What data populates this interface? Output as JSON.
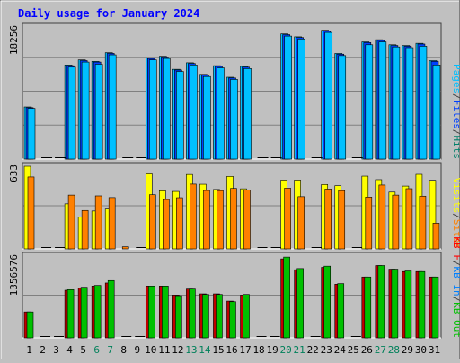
{
  "title": "Daily usage for January 2024",
  "colors": {
    "background": "#c0c0c0",
    "title": "#0000ff",
    "pages": "#00c0ff",
    "files": "#0040ff",
    "hits": "#00806a",
    "visits": "#ffff00",
    "sites": "#ff8000",
    "kb_in": "#0080ff",
    "kb_out": "#00c000",
    "kb_f": "#ff0000",
    "weekend_day": "#00805a"
  },
  "chart_data": [
    {
      "type": "bar",
      "panel": "hits-files-pages",
      "title": "Daily usage for January 2024",
      "ylabel": "18256",
      "ymax": 18256,
      "legend": [
        {
          "label": "Pages",
          "color": "#00c0ff"
        },
        {
          "label": "/",
          "color": "#404040"
        },
        {
          "label": "Files",
          "color": "#0040ff"
        },
        {
          "label": "/",
          "color": "#404040"
        },
        {
          "label": "Hits",
          "color": "#00806a"
        }
      ],
      "categories": [
        "1",
        "2",
        "3",
        "4",
        "5",
        "6",
        "7",
        "8",
        "9",
        "10",
        "11",
        "12",
        "13",
        "14",
        "15",
        "16",
        "17",
        "18",
        "19",
        "20",
        "21",
        "22",
        "23",
        "24",
        "25",
        "26",
        "27",
        "28",
        "29",
        "30",
        "31"
      ],
      "series": [
        {
          "name": "Hits",
          "values": [
            7200,
            0,
            0,
            13000,
            13700,
            13500,
            14700,
            0,
            0,
            14000,
            14200,
            12400,
            13300,
            11700,
            12900,
            11300,
            12800,
            0,
            0,
            17300,
            16900,
            0,
            17800,
            14600,
            0,
            16200,
            16500,
            15800,
            15700,
            16000,
            13600
          ]
        },
        {
          "name": "Files",
          "values": [
            7100,
            0,
            0,
            12900,
            13600,
            13400,
            14600,
            0,
            0,
            13900,
            14100,
            12300,
            13200,
            11600,
            12800,
            11200,
            12700,
            0,
            0,
            17200,
            16800,
            0,
            17700,
            14500,
            0,
            16100,
            16400,
            15700,
            15600,
            15900,
            13500
          ]
        },
        {
          "name": "Pages",
          "values": [
            7000,
            0,
            0,
            12700,
            13400,
            13100,
            14400,
            0,
            0,
            13700,
            13900,
            12100,
            13000,
            11400,
            12600,
            11000,
            12500,
            0,
            0,
            17000,
            16600,
            0,
            17500,
            14300,
            0,
            15800,
            16200,
            15500,
            15400,
            15600,
            13000
          ]
        }
      ]
    },
    {
      "type": "bar",
      "panel": "visits-sites",
      "ylabel": "633",
      "ymax": 633,
      "legend": [
        {
          "label": "Visits",
          "color": "#ffff00"
        },
        {
          "label": "/",
          "color": "#404040"
        },
        {
          "label": "Sites",
          "color": "#ff8000"
        }
      ],
      "categories": [
        "1",
        "2",
        "3",
        "4",
        "5",
        "6",
        "7",
        "8",
        "9",
        "10",
        "11",
        "12",
        "13",
        "14",
        "15",
        "16",
        "17",
        "18",
        "19",
        "20",
        "21",
        "22",
        "23",
        "24",
        "25",
        "26",
        "27",
        "28",
        "29",
        "30",
        "31"
      ],
      "series": [
        {
          "name": "Visits",
          "values": [
            633,
            0,
            0,
            345,
            243,
            290,
            305,
            0,
            0,
            575,
            445,
            440,
            570,
            495,
            455,
            555,
            460,
            0,
            0,
            527,
            527,
            0,
            493,
            484,
            0,
            557,
            530,
            435,
            481,
            571,
            525
          ]
        },
        {
          "name": "Sites",
          "values": [
            551,
            0,
            0,
            412,
            294,
            406,
            393,
            16,
            0,
            415,
            378,
            392,
            496,
            447,
            446,
            463,
            450,
            0,
            0,
            465,
            400,
            0,
            458,
            446,
            0,
            397,
            489,
            412,
            461,
            404,
            197
          ]
        }
      ]
    },
    {
      "type": "bar",
      "panel": "kbf-kbin-kbout",
      "ylabel": "1356576",
      "ymax": 1356576,
      "legend": [
        {
          "label": "KB F",
          "color": "#ff0000"
        },
        {
          "label": "/",
          "color": "#404040"
        },
        {
          "label": "KB In",
          "color": "#0080ff"
        },
        {
          "label": "/",
          "color": "#404040"
        },
        {
          "label": "KB Out",
          "color": "#00c000"
        }
      ],
      "categories": [
        "1",
        "2",
        "3",
        "4",
        "5",
        "6",
        "7",
        "8",
        "9",
        "10",
        "11",
        "12",
        "13",
        "14",
        "15",
        "16",
        "17",
        "18",
        "19",
        "20",
        "21",
        "22",
        "23",
        "24",
        "25",
        "26",
        "27",
        "28",
        "29",
        "30",
        "31"
      ],
      "series": [
        {
          "name": "KB F",
          "values": [
            430000,
            0,
            0,
            790000,
            830000,
            860000,
            910000,
            0,
            0,
            860000,
            860000,
            710000,
            810000,
            730000,
            730000,
            610000,
            710000,
            0,
            0,
            1310000,
            1130000,
            0,
            1170000,
            890000,
            0,
            1010000,
            1200000,
            1140000,
            1100000,
            1100000,
            1010000
          ]
        },
        {
          "name": "KB In",
          "values": [
            0,
            0,
            0,
            0,
            0,
            0,
            0,
            0,
            0,
            0,
            0,
            0,
            0,
            0,
            0,
            0,
            0,
            0,
            0,
            0,
            0,
            0,
            0,
            0,
            0,
            0,
            0,
            0,
            0,
            0,
            0
          ]
        },
        {
          "name": "KB Out",
          "values": [
            430000,
            0,
            0,
            800000,
            840000,
            870000,
            950000,
            0,
            0,
            860000,
            860000,
            700000,
            810000,
            720000,
            720000,
            600000,
            720000,
            0,
            0,
            1340000,
            1150000,
            0,
            1190000,
            900000,
            0,
            1010000,
            1200000,
            1140000,
            1110000,
            1100000,
            1010000
          ]
        }
      ]
    }
  ],
  "day_labels": [
    {
      "text": "1",
      "weekend": false
    },
    {
      "text": "2",
      "weekend": false
    },
    {
      "text": "3",
      "weekend": false
    },
    {
      "text": "4",
      "weekend": false
    },
    {
      "text": "5",
      "weekend": false
    },
    {
      "text": "6",
      "weekend": true
    },
    {
      "text": "7",
      "weekend": true
    },
    {
      "text": "8",
      "weekend": false
    },
    {
      "text": "9",
      "weekend": false
    },
    {
      "text": "10",
      "weekend": false
    },
    {
      "text": "11",
      "weekend": false
    },
    {
      "text": "12",
      "weekend": false
    },
    {
      "text": "13",
      "weekend": true
    },
    {
      "text": "14",
      "weekend": true
    },
    {
      "text": "15",
      "weekend": false
    },
    {
      "text": "16",
      "weekend": false
    },
    {
      "text": "17",
      "weekend": false
    },
    {
      "text": "18",
      "weekend": false
    },
    {
      "text": "19",
      "weekend": false
    },
    {
      "text": "20",
      "weekend": true
    },
    {
      "text": "21",
      "weekend": true
    },
    {
      "text": "22",
      "weekend": false
    },
    {
      "text": "23",
      "weekend": false
    },
    {
      "text": "24",
      "weekend": false
    },
    {
      "text": "25",
      "weekend": false
    },
    {
      "text": "26",
      "weekend": false
    },
    {
      "text": "27",
      "weekend": true
    },
    {
      "text": "28",
      "weekend": true
    },
    {
      "text": "29",
      "weekend": false
    },
    {
      "text": "30",
      "weekend": false
    },
    {
      "text": "31",
      "weekend": false
    }
  ]
}
